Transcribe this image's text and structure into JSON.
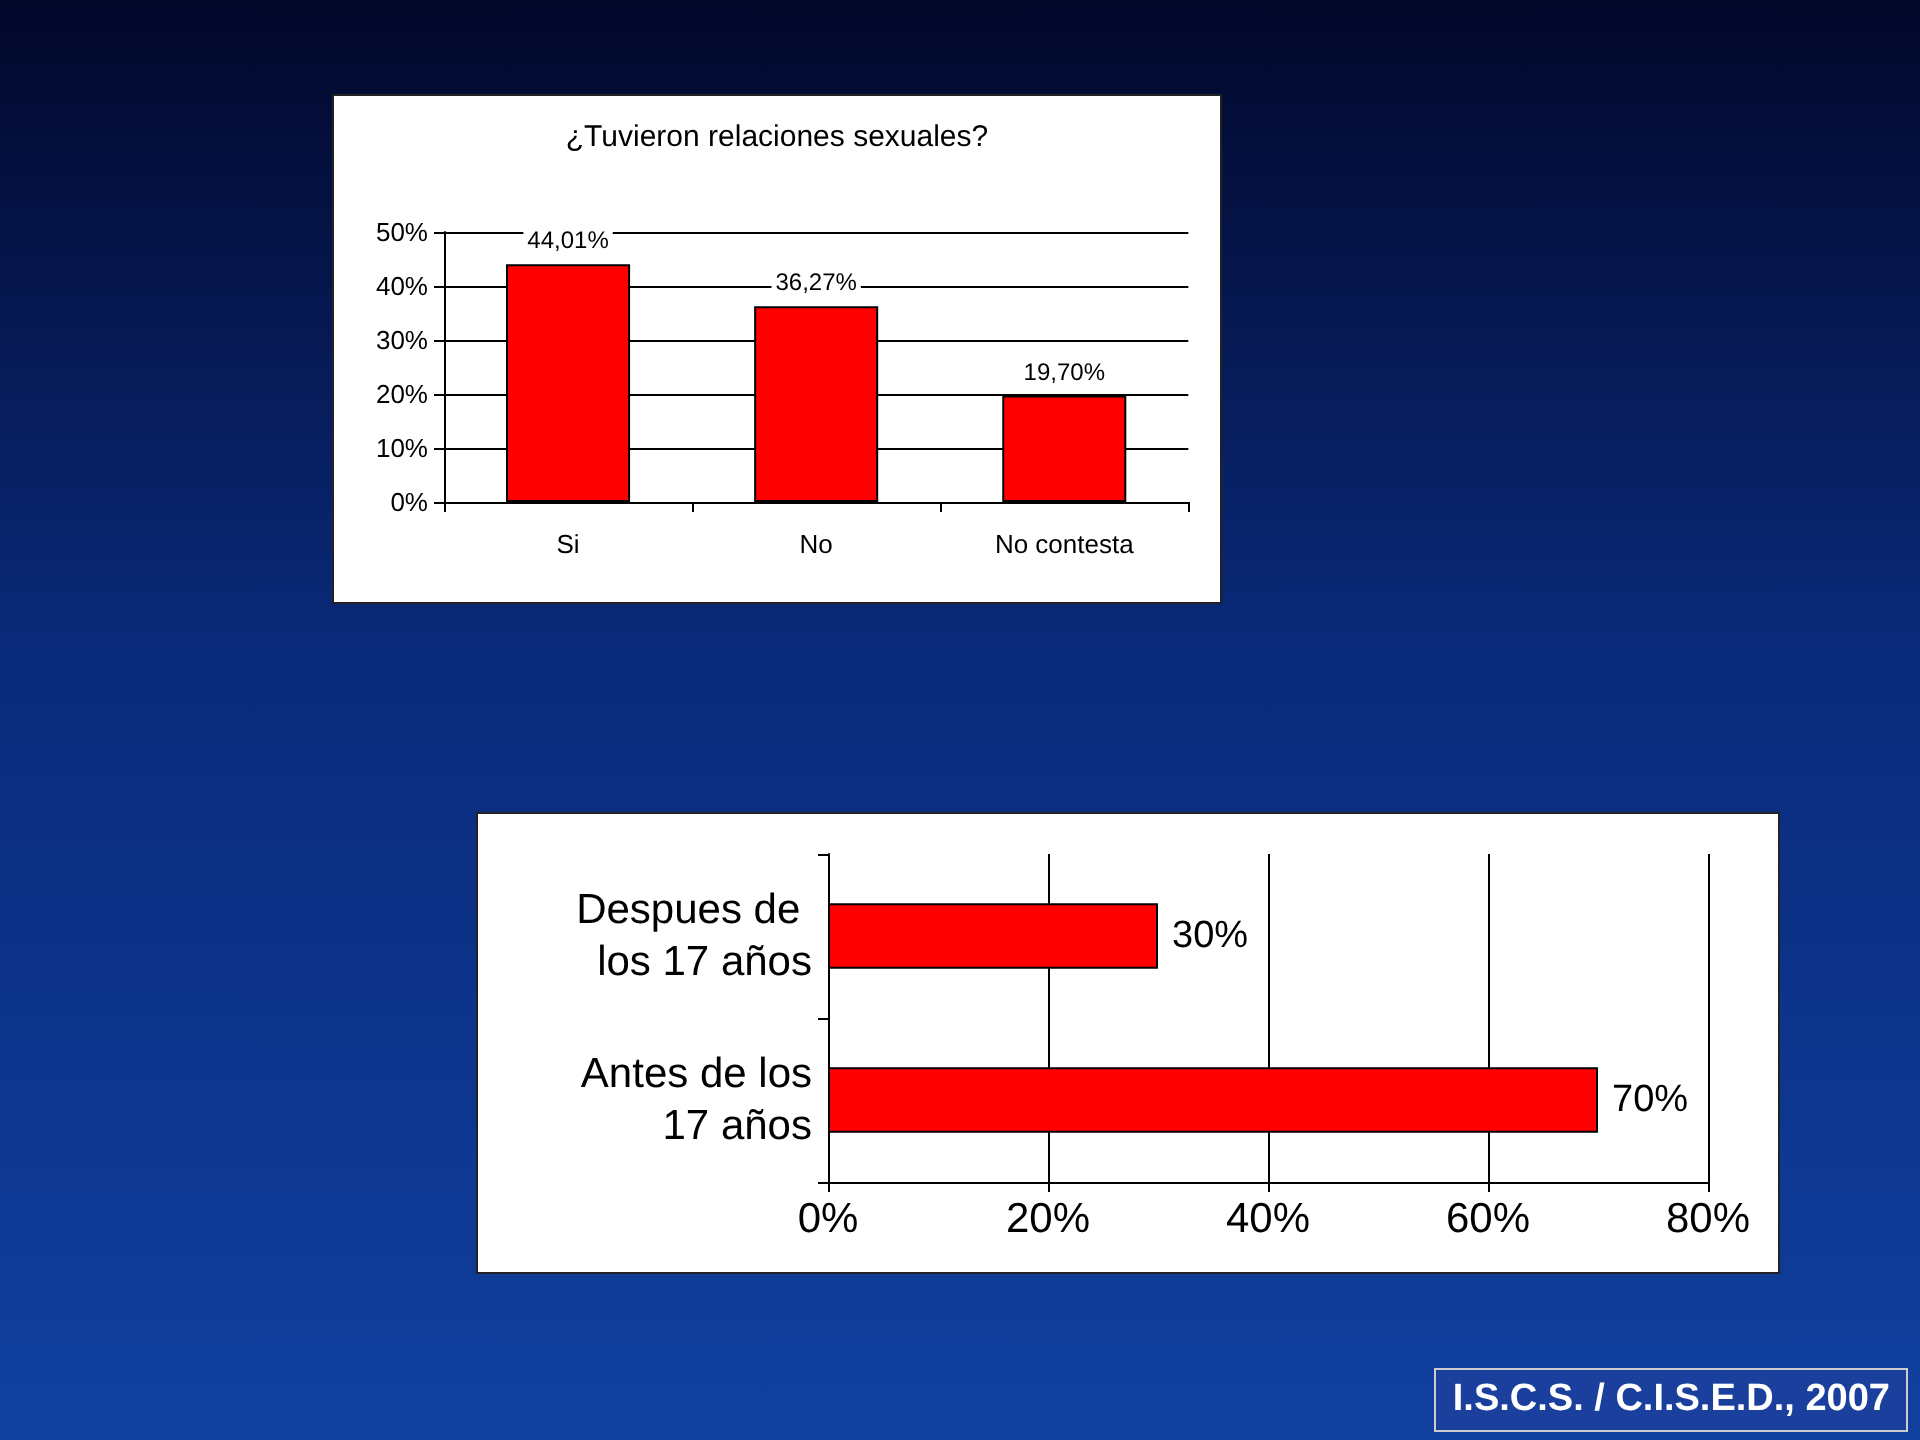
{
  "chart_data": [
    {
      "type": "bar",
      "title": "¿Tuvieron relaciones sexuales?",
      "categories": [
        "Si",
        "No",
        "No contesta"
      ],
      "values": [
        44.01,
        36.27,
        19.7
      ],
      "value_labels": [
        "44,01%",
        "36,27%",
        "19,70%"
      ],
      "color": "#ff0000",
      "ylim": [
        0,
        50
      ],
      "yticks": [
        {
          "value": 0,
          "label": "0%"
        },
        {
          "value": 10,
          "label": "10%"
        },
        {
          "value": 20,
          "label": "20%"
        },
        {
          "value": 30,
          "label": "30%"
        },
        {
          "value": 40,
          "label": "40%"
        },
        {
          "value": 50,
          "label": "50%"
        }
      ],
      "grid": "y"
    },
    {
      "type": "bar",
      "orientation": "horizontal",
      "categories": [
        "Despues de los 17 años",
        "Antes de los 17 años"
      ],
      "values": [
        30,
        70
      ],
      "value_labels": [
        "30%",
        "70%"
      ],
      "color": "#ff0000",
      "xlim": [
        0,
        80
      ],
      "xticks": [
        {
          "value": 0,
          "label": "0%"
        },
        {
          "value": 20,
          "label": "20%"
        },
        {
          "value": 40,
          "label": "40%"
        },
        {
          "value": 60,
          "label": "60%"
        },
        {
          "value": 80,
          "label": "80%"
        }
      ],
      "grid": "x",
      "annotations": [
        "I.S.C.S. / C.I.S.E.D., 2007"
      ]
    }
  ]
}
